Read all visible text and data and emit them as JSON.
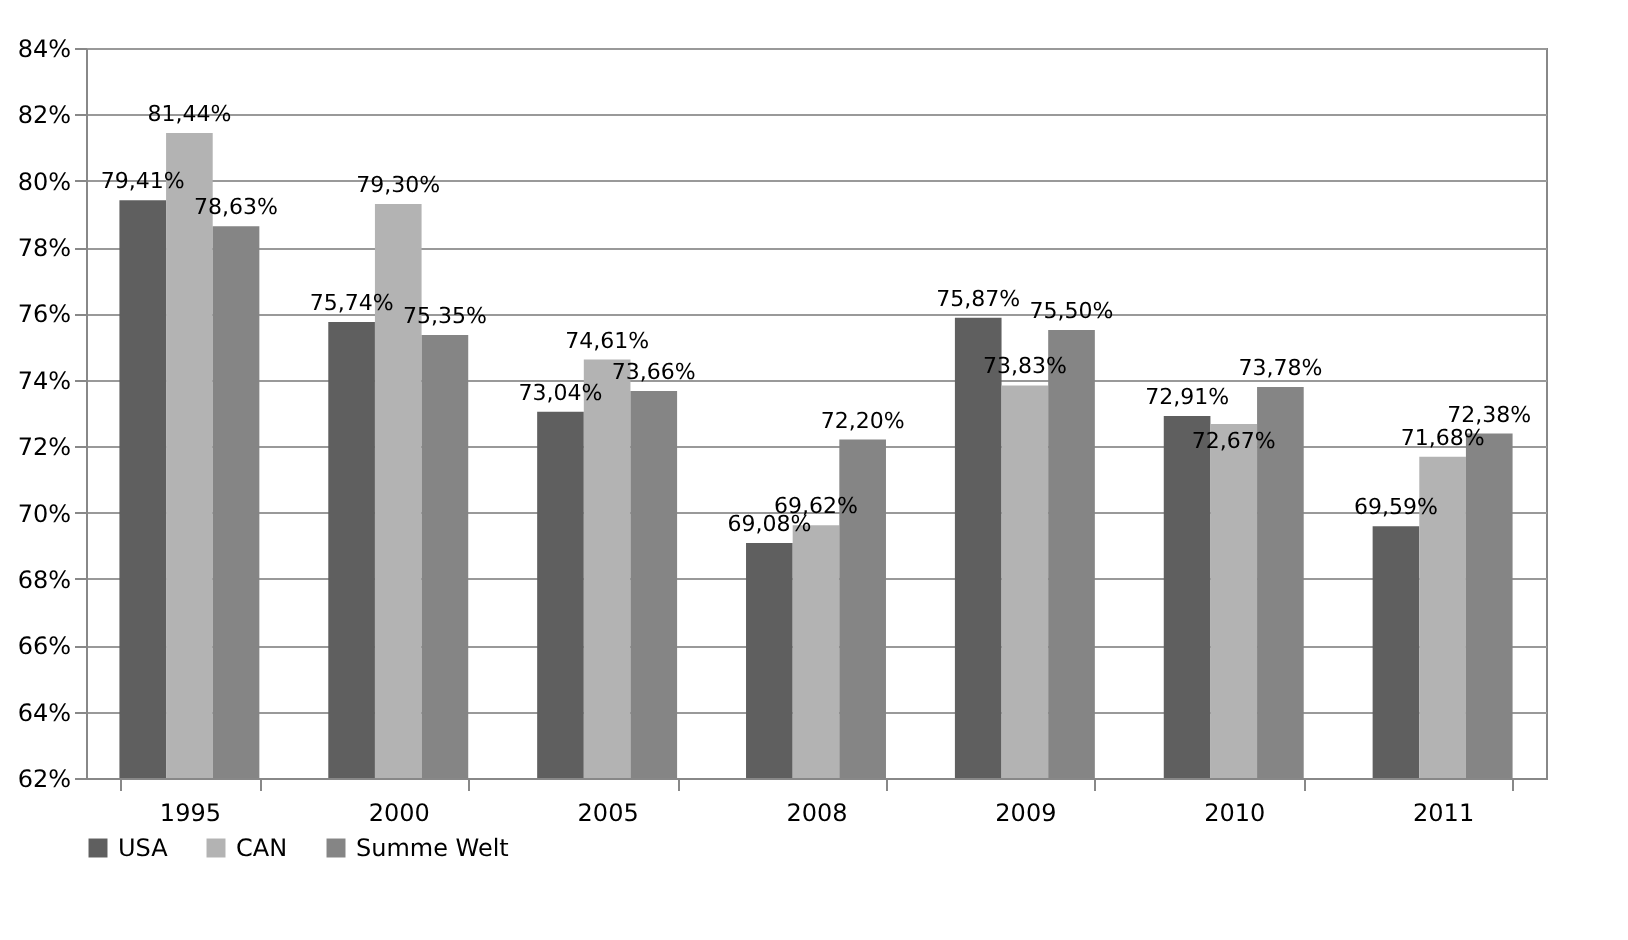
{
  "chart_data": {
    "type": "bar",
    "categories": [
      "1995",
      "2000",
      "2005",
      "2008",
      "2009",
      "2010",
      "2011"
    ],
    "series": [
      {
        "name": "USA",
        "color": "#5f5f5f",
        "values": [
          79.41,
          75.74,
          73.04,
          69.08,
          75.87,
          72.91,
          69.59
        ],
        "value_labels": [
          "79,41%",
          "75,74%",
          "73,04%",
          "69,08%",
          "75,87%",
          "72,91%",
          "69,59%"
        ]
      },
      {
        "name": "CAN",
        "color": "#b3b3b3",
        "values": [
          81.44,
          79.3,
          74.61,
          69.62,
          73.83,
          72.67,
          71.68
        ],
        "value_labels": [
          "81,44%",
          "79,30%",
          "74,61%",
          "69,62%",
          "73,83%",
          "72,67%",
          "71,68%"
        ]
      },
      {
        "name": "Summe Welt",
        "color": "#858585",
        "values": [
          78.63,
          75.35,
          73.66,
          72.2,
          75.5,
          73.78,
          72.38
        ],
        "value_labels": [
          "78,63%",
          "75,35%",
          "73,66%",
          "72,20%",
          "75,50%",
          "73,78%",
          "72,38%"
        ]
      }
    ],
    "ylim": [
      62,
      84
    ],
    "yticks": [
      {
        "value": 62,
        "label": "62%"
      },
      {
        "value": 64,
        "label": "64%"
      },
      {
        "value": 66,
        "label": "66%"
      },
      {
        "value": 68,
        "label": "68%"
      },
      {
        "value": 70,
        "label": "70%"
      },
      {
        "value": 72,
        "label": "72%"
      },
      {
        "value": 74,
        "label": "74%"
      },
      {
        "value": 76,
        "label": "76%"
      },
      {
        "value": 78,
        "label": "78%"
      },
      {
        "value": 80,
        "label": "80%"
      },
      {
        "value": 82,
        "label": "82%"
      },
      {
        "value": 84,
        "label": "84%"
      }
    ],
    "grid": "y",
    "legend": "bottom"
  }
}
